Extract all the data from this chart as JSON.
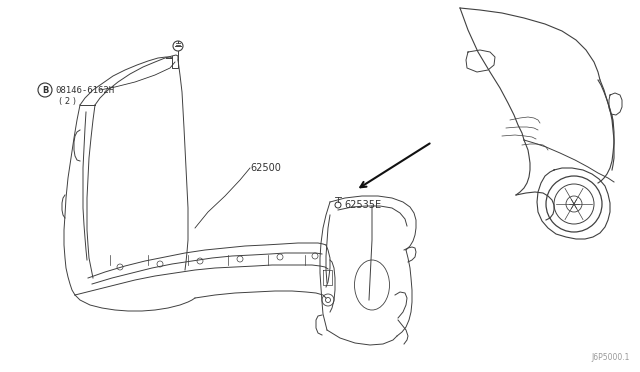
{
  "background_color": "#ffffff",
  "figure_width": 6.4,
  "figure_height": 3.72,
  "dpi": 100,
  "line_color": "#404040",
  "text_color": "#333333",
  "arrow_color": "#111111",
  "label_B": "B",
  "label_part1": "08146-6162H",
  "label_part1_sub": "( 2 )",
  "label_62500": "62500",
  "label_62535": "62535E",
  "label_diagram_num": "J6P5000.1"
}
